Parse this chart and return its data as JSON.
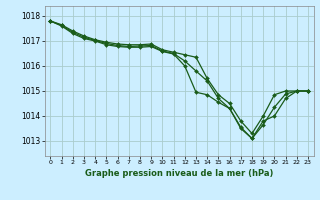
{
  "background_color": "#cceeff",
  "grid_color": "#aacccc",
  "line_color": "#1a5c1a",
  "marker_color": "#1a5c1a",
  "title": "Graphe pression niveau de la mer (hPa)",
  "ylim": [
    1012.4,
    1018.4
  ],
  "yticks": [
    1013,
    1014,
    1015,
    1016,
    1017,
    1018
  ],
  "ytick_labels": [
    "1013",
    "1014",
    "1015",
    "1016",
    "1017",
    "1018"
  ],
  "xlabel_hours": [
    "0",
    "1",
    "2",
    "3",
    "4",
    "5",
    "6",
    "7",
    "8",
    "9",
    "10",
    "11",
    "12",
    "13",
    "14",
    "15",
    "16",
    "17",
    "18",
    "19",
    "20",
    "21",
    "22",
    "23"
  ],
  "series": [
    [
      1017.8,
      1017.65,
      1017.4,
      1017.2,
      1017.05,
      1016.95,
      1016.88,
      1016.85,
      1016.85,
      1016.88,
      1016.65,
      1016.55,
      1016.45,
      1016.35,
      1015.5,
      1014.85,
      1014.5,
      1013.8,
      1013.3,
      1014.0,
      1014.85,
      1015.0,
      1015.0,
      1015.0
    ],
    [
      1017.8,
      1017.62,
      1017.35,
      1017.15,
      1017.02,
      1016.9,
      1016.82,
      1016.78,
      1016.8,
      1016.82,
      1016.6,
      1016.5,
      1016.2,
      1015.8,
      1015.4,
      1014.7,
      1014.3,
      1013.5,
      1013.1,
      1013.8,
      1014.0,
      1014.7,
      1015.0,
      1015.0
    ],
    [
      1017.8,
      1017.6,
      1017.3,
      1017.1,
      1017.0,
      1016.85,
      1016.78,
      1016.75,
      1016.75,
      1016.78,
      1016.58,
      1016.48,
      1016.0,
      1014.95,
      1014.85,
      1014.55,
      1014.3,
      1013.55,
      1013.1,
      1013.65,
      1014.35,
      1014.88,
      1015.0,
      1015.0
    ]
  ]
}
